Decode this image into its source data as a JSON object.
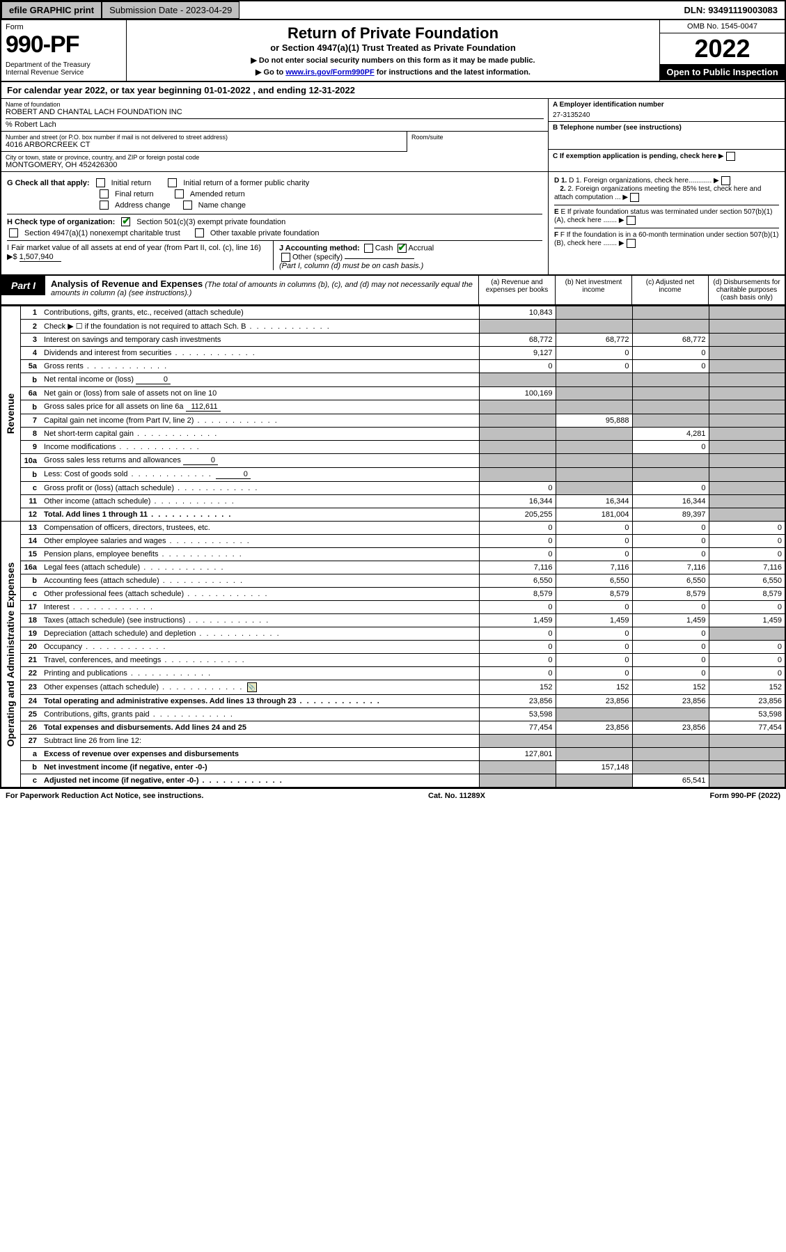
{
  "topbar": {
    "efile": "efile GRAPHIC print",
    "submission": "Submission Date - 2023-04-29",
    "dln": "DLN: 93491119003083"
  },
  "header": {
    "form_word": "Form",
    "form_num": "990-PF",
    "dept": "Department of the Treasury\nInternal Revenue Service",
    "title": "Return of Private Foundation",
    "subtitle": "or Section 4947(a)(1) Trust Treated as Private Foundation",
    "instr1": "▶ Do not enter social security numbers on this form as it may be made public.",
    "instr2_pre": "▶ Go to ",
    "instr2_link": "www.irs.gov/Form990PF",
    "instr2_post": " for instructions and the latest information.",
    "omb": "OMB No. 1545-0047",
    "year": "2022",
    "inspect": "Open to Public Inspection"
  },
  "cal_year": "For calendar year 2022, or tax year beginning 01-01-2022           , and ending 12-31-2022",
  "info": {
    "name_lbl": "Name of foundation",
    "name": "ROBERT AND CHANTAL LACH FOUNDATION INC",
    "care_of": "% Robert Lach",
    "addr_lbl": "Number and street (or P.O. box number if mail is not delivered to street address)",
    "addr": "4016 ARBORCREEK CT",
    "room_lbl": "Room/suite",
    "room": "",
    "city_lbl": "City or town, state or province, country, and ZIP or foreign postal code",
    "city": "MONTGOMERY, OH 452426300",
    "a_lbl": "A Employer identification number",
    "a_val": "27-3135240",
    "b_lbl": "B Telephone number (see instructions)",
    "b_val": "",
    "c_lbl": "C If exemption application is pending, check here",
    "d1": "D 1. Foreign organizations, check here............",
    "d2": "2. Foreign organizations meeting the 85% test, check here and attach computation ...",
    "e_lbl": "E If private foundation status was terminated under section 507(b)(1)(A), check here .......",
    "f_lbl": "F If the foundation is in a 60-month termination under section 507(b)(1)(B), check here ......."
  },
  "g": {
    "label": "G Check all that apply:",
    "opts": [
      "Initial return",
      "Final return",
      "Address change",
      "Initial return of a former public charity",
      "Amended return",
      "Name change"
    ]
  },
  "h": {
    "label": "H Check type of organization:",
    "opt1": "Section 501(c)(3) exempt private foundation",
    "opt2": "Section 4947(a)(1) nonexempt charitable trust",
    "opt3": "Other taxable private foundation"
  },
  "i": {
    "label": "I Fair market value of all assets at end of year (from Part II, col. (c), line 16)",
    "arrow": "▶$",
    "val": "1,507,940"
  },
  "j": {
    "label": "J Accounting method:",
    "cash": "Cash",
    "accrual": "Accrual",
    "other": "Other (specify)",
    "note": "(Part I, column (d) must be on cash basis.)"
  },
  "part1": {
    "badge": "Part I",
    "title": "Analysis of Revenue and Expenses",
    "title_note": "(The total of amounts in columns (b), (c), and (d) may not necessarily equal the amounts in column (a) (see instructions).)",
    "col_a": "(a) Revenue and expenses per books",
    "col_b": "(b) Net investment income",
    "col_c": "(c) Adjusted net income",
    "col_d": "(d) Disbursements for charitable purposes (cash basis only)"
  },
  "sections": {
    "revenue": "Revenue",
    "expenses": "Operating and Administrative Expenses"
  },
  "rows": [
    {
      "ln": "1",
      "desc": "Contributions, gifts, grants, etc., received (attach schedule)",
      "a": "10,843",
      "b": "",
      "c": "",
      "d": "",
      "shade_b": true,
      "shade_c": true,
      "shade_d": true
    },
    {
      "ln": "2",
      "desc": "Check ▶ ☐ if the foundation is not required to attach Sch. B",
      "a": "",
      "b": "",
      "c": "",
      "d": "",
      "shade_a": true,
      "shade_b": true,
      "shade_c": true,
      "shade_d": true,
      "dots": true
    },
    {
      "ln": "3",
      "desc": "Interest on savings and temporary cash investments",
      "a": "68,772",
      "b": "68,772",
      "c": "68,772",
      "d": "",
      "shade_d": true
    },
    {
      "ln": "4",
      "desc": "Dividends and interest from securities",
      "a": "9,127",
      "b": "0",
      "c": "0",
      "d": "",
      "shade_d": true,
      "dots": true
    },
    {
      "ln": "5a",
      "desc": "Gross rents",
      "a": "0",
      "b": "0",
      "c": "0",
      "d": "",
      "shade_d": true,
      "dots": true
    },
    {
      "ln": "b",
      "desc": "Net rental income or (loss)",
      "inline": "0",
      "a": "",
      "b": "",
      "c": "",
      "d": "",
      "shade_a": true,
      "shade_b": true,
      "shade_c": true,
      "shade_d": true
    },
    {
      "ln": "6a",
      "desc": "Net gain or (loss) from sale of assets not on line 10",
      "a": "100,169",
      "b": "",
      "c": "",
      "d": "",
      "shade_b": true,
      "shade_c": true,
      "shade_d": true
    },
    {
      "ln": "b",
      "desc": "Gross sales price for all assets on line 6a",
      "inline": "112,611",
      "a": "",
      "b": "",
      "c": "",
      "d": "",
      "shade_a": true,
      "shade_b": true,
      "shade_c": true,
      "shade_d": true
    },
    {
      "ln": "7",
      "desc": "Capital gain net income (from Part IV, line 2)",
      "a": "",
      "b": "95,888",
      "c": "",
      "d": "",
      "shade_a": true,
      "shade_c": true,
      "shade_d": true,
      "dots": true
    },
    {
      "ln": "8",
      "desc": "Net short-term capital gain",
      "a": "",
      "b": "",
      "c": "4,281",
      "d": "",
      "shade_a": true,
      "shade_b": true,
      "shade_d": true,
      "dots": true
    },
    {
      "ln": "9",
      "desc": "Income modifications",
      "a": "",
      "b": "",
      "c": "0",
      "d": "",
      "shade_a": true,
      "shade_b": true,
      "shade_d": true,
      "dots": true
    },
    {
      "ln": "10a",
      "desc": "Gross sales less returns and allowances",
      "inline": "0",
      "a": "",
      "b": "",
      "c": "",
      "d": "",
      "shade_a": true,
      "shade_b": true,
      "shade_c": true,
      "shade_d": true
    },
    {
      "ln": "b",
      "desc": "Less: Cost of goods sold",
      "inline": "0",
      "a": "",
      "b": "",
      "c": "",
      "d": "",
      "shade_a": true,
      "shade_b": true,
      "shade_c": true,
      "shade_d": true,
      "dots": true
    },
    {
      "ln": "c",
      "desc": "Gross profit or (loss) (attach schedule)",
      "a": "0",
      "b": "",
      "c": "0",
      "d": "",
      "shade_b": true,
      "shade_d": true,
      "dots": true
    },
    {
      "ln": "11",
      "desc": "Other income (attach schedule)",
      "a": "16,344",
      "b": "16,344",
      "c": "16,344",
      "d": "",
      "shade_d": true,
      "dots": true
    },
    {
      "ln": "12",
      "desc": "Total. Add lines 1 through 11",
      "a": "205,255",
      "b": "181,004",
      "c": "89,397",
      "d": "",
      "shade_d": true,
      "bold": true,
      "dots": true
    }
  ],
  "exp_rows": [
    {
      "ln": "13",
      "desc": "Compensation of officers, directors, trustees, etc.",
      "a": "0",
      "b": "0",
      "c": "0",
      "d": "0"
    },
    {
      "ln": "14",
      "desc": "Other employee salaries and wages",
      "a": "0",
      "b": "0",
      "c": "0",
      "d": "0",
      "dots": true
    },
    {
      "ln": "15",
      "desc": "Pension plans, employee benefits",
      "a": "0",
      "b": "0",
      "c": "0",
      "d": "0",
      "dots": true
    },
    {
      "ln": "16a",
      "desc": "Legal fees (attach schedule)",
      "a": "7,116",
      "b": "7,116",
      "c": "7,116",
      "d": "7,116",
      "dots": true
    },
    {
      "ln": "b",
      "desc": "Accounting fees (attach schedule)",
      "a": "6,550",
      "b": "6,550",
      "c": "6,550",
      "d": "6,550",
      "dots": true
    },
    {
      "ln": "c",
      "desc": "Other professional fees (attach schedule)",
      "a": "8,579",
      "b": "8,579",
      "c": "8,579",
      "d": "8,579",
      "dots": true
    },
    {
      "ln": "17",
      "desc": "Interest",
      "a": "0",
      "b": "0",
      "c": "0",
      "d": "0",
      "dots": true
    },
    {
      "ln": "18",
      "desc": "Taxes (attach schedule) (see instructions)",
      "a": "1,459",
      "b": "1,459",
      "c": "1,459",
      "d": "1,459",
      "dots": true
    },
    {
      "ln": "19",
      "desc": "Depreciation (attach schedule) and depletion",
      "a": "0",
      "b": "0",
      "c": "0",
      "d": "",
      "shade_d": true,
      "dots": true
    },
    {
      "ln": "20",
      "desc": "Occupancy",
      "a": "0",
      "b": "0",
      "c": "0",
      "d": "0",
      "dots": true
    },
    {
      "ln": "21",
      "desc": "Travel, conferences, and meetings",
      "a": "0",
      "b": "0",
      "c": "0",
      "d": "0",
      "dots": true
    },
    {
      "ln": "22",
      "desc": "Printing and publications",
      "a": "0",
      "b": "0",
      "c": "0",
      "d": "0",
      "dots": true
    },
    {
      "ln": "23",
      "desc": "Other expenses (attach schedule)",
      "a": "152",
      "b": "152",
      "c": "152",
      "d": "152",
      "icon": true,
      "dots": true
    },
    {
      "ln": "24",
      "desc": "Total operating and administrative expenses. Add lines 13 through 23",
      "a": "23,856",
      "b": "23,856",
      "c": "23,856",
      "d": "23,856",
      "bold": true,
      "dots": true
    },
    {
      "ln": "25",
      "desc": "Contributions, gifts, grants paid",
      "a": "53,598",
      "b": "",
      "c": "",
      "d": "53,598",
      "shade_b": true,
      "shade_c": true,
      "dots": true
    },
    {
      "ln": "26",
      "desc": "Total expenses and disbursements. Add lines 24 and 25",
      "a": "77,454",
      "b": "23,856",
      "c": "23,856",
      "d": "77,454",
      "bold": true
    },
    {
      "ln": "27",
      "desc": "Subtract line 26 from line 12:",
      "a": "",
      "b": "",
      "c": "",
      "d": "",
      "shade_a": true,
      "shade_b": true,
      "shade_c": true,
      "shade_d": true
    },
    {
      "ln": "a",
      "desc": "Excess of revenue over expenses and disbursements",
      "a": "127,801",
      "b": "",
      "c": "",
      "d": "",
      "shade_b": true,
      "shade_c": true,
      "shade_d": true,
      "bold": true
    },
    {
      "ln": "b",
      "desc": "Net investment income (if negative, enter -0-)",
      "a": "",
      "b": "157,148",
      "c": "",
      "d": "",
      "shade_a": true,
      "shade_c": true,
      "shade_d": true,
      "bold": true
    },
    {
      "ln": "c",
      "desc": "Adjusted net income (if negative, enter -0-)",
      "a": "",
      "b": "",
      "c": "65,541",
      "d": "",
      "shade_a": true,
      "shade_b": true,
      "shade_d": true,
      "bold": true,
      "dots": true
    }
  ],
  "footer": {
    "left": "For Paperwork Reduction Act Notice, see instructions.",
    "mid": "Cat. No. 11289X",
    "right": "Form 990-PF (2022)"
  },
  "colors": {
    "link": "#0000cc",
    "shade": "#bfbfbf",
    "check": "#008000"
  }
}
